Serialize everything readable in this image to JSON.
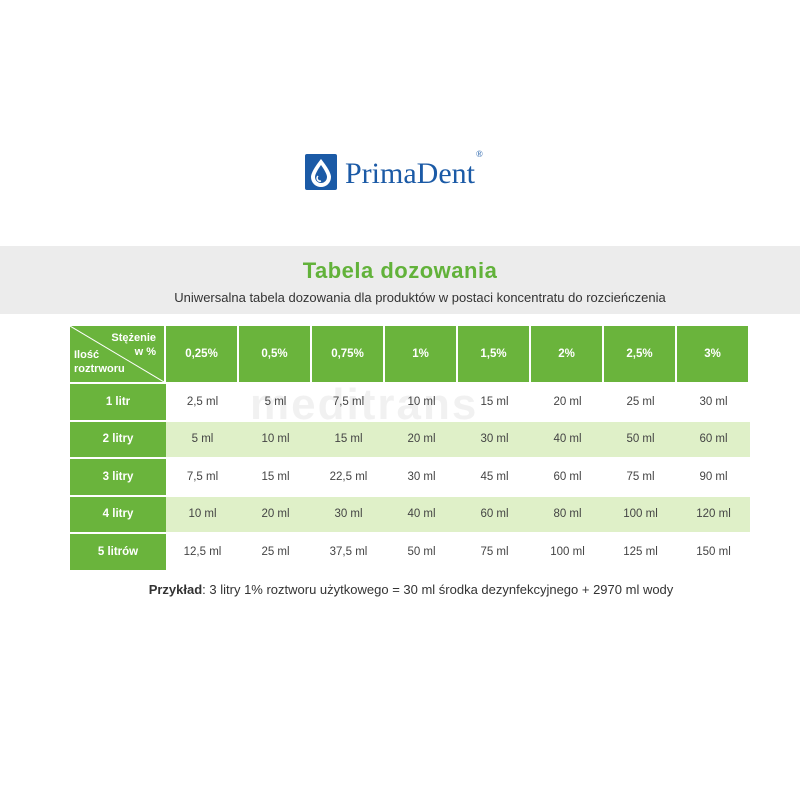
{
  "brand": {
    "name": "PrimaDent",
    "reg": "®"
  },
  "header": {
    "title": "Tabela dozowania",
    "subtitle": "Uniwersalna tabela dozowania dla produktów w postaci koncentratu do rozcieńczenia"
  },
  "table": {
    "corner_top": "Stężenie w %",
    "corner_top_l1": "Stężenie",
    "corner_top_l2": "w %",
    "corner_bottom_l1": "Ilość",
    "corner_bottom_l2": "roztrworu",
    "columns": [
      "0,25%",
      "0,5%",
      "0,75%",
      "1%",
      "1,5%",
      "2%",
      "2,5%",
      "3%"
    ],
    "rows": [
      {
        "label": "1 litr",
        "values": [
          "2,5 ml",
          "5 ml",
          "7,5 ml",
          "10 ml",
          "15 ml",
          "20 ml",
          "25 ml",
          "30 ml"
        ]
      },
      {
        "label": "2 litry",
        "values": [
          "5 ml",
          "10 ml",
          "15 ml",
          "20 ml",
          "30 ml",
          "40 ml",
          "50 ml",
          "60 ml"
        ]
      },
      {
        "label": "3 litry",
        "values": [
          "7,5 ml",
          "15 ml",
          "22,5 ml",
          "30 ml",
          "45 ml",
          "60 ml",
          "75 ml",
          "90 ml"
        ]
      },
      {
        "label": "4 litry",
        "values": [
          "10 ml",
          "20 ml",
          "30 ml",
          "40 ml",
          "60 ml",
          "80 ml",
          "100 ml",
          "120 ml"
        ]
      },
      {
        "label": "5 litrów",
        "values": [
          "12,5 ml",
          "25 ml",
          "37,5 ml",
          "50 ml",
          "75 ml",
          "100 ml",
          "125 ml",
          "150 ml"
        ]
      }
    ]
  },
  "example": {
    "label": "Przykład",
    "text": ": 3 litry 1% roztworu użytkowego = 30 ml środka dezynfekcyjnego + 2970 ml wody"
  },
  "watermark": "meditrans",
  "colors": {
    "green": "#6ab43c",
    "title_green": "#62b23a",
    "brand_blue": "#1b5aa6",
    "alt_row": "#dff0c8",
    "banner": "#ececec"
  }
}
